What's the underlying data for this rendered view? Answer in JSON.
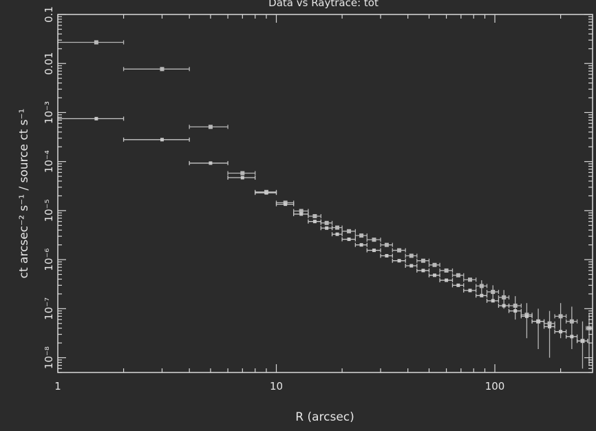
{
  "chart_data": {
    "type": "scatter",
    "title": "Data vs Raytrace: tot",
    "xlabel": "R (arcsec)",
    "ylabel": "ct arcsec⁻² s⁻¹ / source ct s⁻¹",
    "xscale": "log",
    "yscale": "log",
    "xlim": [
      1,
      280
    ],
    "ylim": [
      5e-09,
      0.1
    ],
    "grid": false,
    "legend": "none",
    "x_ticks": [
      {
        "value": 1,
        "label": "1"
      },
      {
        "value": 10,
        "label": "10"
      },
      {
        "value": 100,
        "label": "100"
      }
    ],
    "y_ticks": [
      {
        "value": 0.1,
        "label": "0.1"
      },
      {
        "value": 0.01,
        "label": "0.01"
      },
      {
        "value": 0.001,
        "label": "10⁻³"
      },
      {
        "value": 0.0001,
        "label": "10⁻⁴"
      },
      {
        "value": 1e-05,
        "label": "10⁻⁵"
      },
      {
        "value": 1e-06,
        "label": "10⁻⁶"
      },
      {
        "value": 1e-07,
        "label": "10⁻⁷"
      },
      {
        "value": 1e-08,
        "label": "10⁻⁸"
      }
    ],
    "series": [
      {
        "color": "#b8b8b8",
        "points": [
          {
            "x": 1.5,
            "y": 0.027,
            "xerr": [
              1,
              2
            ]
          },
          {
            "x": 3.0,
            "y": 0.0077,
            "xerr": [
              2,
              4
            ]
          },
          {
            "x": 5.0,
            "y": 0.00051,
            "xerr": [
              4,
              6
            ]
          },
          {
            "x": 7.0,
            "y": 5.8e-05,
            "xerr": [
              6,
              8
            ]
          },
          {
            "x": 9.0,
            "y": 2.4e-05,
            "xerr": [
              8,
              10
            ]
          },
          {
            "x": 11.0,
            "y": 1.45e-05,
            "xerr": [
              10,
              12
            ]
          },
          {
            "x": 13.0,
            "y": 9.8e-06,
            "xerr": [
              12,
              14
            ]
          },
          {
            "x": 15.0,
            "y": 7.7e-06,
            "xerr": [
              14,
              16
            ]
          },
          {
            "x": 17.0,
            "y": 5.6e-06,
            "xerr": [
              16,
              18
            ]
          },
          {
            "x": 19.0,
            "y": 4.5e-06,
            "xerr": [
              18,
              20
            ]
          },
          {
            "x": 21.5,
            "y": 3.8e-06,
            "xerr": [
              20,
              23
            ]
          },
          {
            "x": 24.5,
            "y": 3.1e-06,
            "xerr": [
              23,
              26
            ]
          },
          {
            "x": 28.0,
            "y": 2.55e-06,
            "xerr": [
              26,
              30
            ]
          },
          {
            "x": 32.0,
            "y": 2e-06,
            "xerr": [
              30,
              34
            ]
          },
          {
            "x": 36.5,
            "y": 1.55e-06,
            "xerr": [
              34,
              39
            ]
          },
          {
            "x": 41.5,
            "y": 1.2e-06,
            "xerr": [
              39,
              44
            ]
          },
          {
            "x": 47.0,
            "y": 9.5e-07,
            "xerr": [
              44,
              50
            ]
          },
          {
            "x": 53.0,
            "y": 7.8e-07,
            "xerr": [
              50,
              56
            ]
          },
          {
            "x": 60.0,
            "y": 6e-07,
            "xerr": [
              56,
              64
            ]
          },
          {
            "x": 68.0,
            "y": 4.8e-07,
            "xerr": [
              64,
              72
            ]
          },
          {
            "x": 77.0,
            "y": 3.9e-07,
            "xerr": [
              72,
              82
            ]
          },
          {
            "x": 87.0,
            "y": 2.9e-07,
            "xerr": [
              82,
              92
            ],
            "yerr": [
              2e-07,
              3.8e-07
            ]
          },
          {
            "x": 98.0,
            "y": 2.2e-07,
            "xerr": [
              92,
              104
            ],
            "yerr": [
              1.4e-07,
              3e-07
            ]
          },
          {
            "x": 110.0,
            "y": 1.7e-07,
            "xerr": [
              104,
              116
            ],
            "yerr": [
              1e-07,
              2.4e-07
            ]
          },
          {
            "x": 124.0,
            "y": 1.15e-07,
            "xerr": [
              116,
              132
            ],
            "yerr": [
              6e-08,
              1.8e-07
            ]
          },
          {
            "x": 140.0,
            "y": 7.5e-08,
            "xerr": [
              132,
              148
            ],
            "yerr": [
              2.5e-08,
              1.3e-07
            ]
          },
          {
            "x": 158.0,
            "y": 5.5e-08,
            "xerr": [
              148,
              168
            ],
            "yerr": [
              1.5e-08,
              1e-07
            ]
          },
          {
            "x": 178.0,
            "y": 5e-08,
            "xerr": [
              168,
              188
            ],
            "yerr": [
              1e-08,
              9e-08
            ]
          },
          {
            "x": 200.0,
            "y": 7e-08,
            "xerr": [
              188,
              212
            ],
            "yerr": [
              2.5e-08,
              1.3e-07
            ]
          },
          {
            "x": 225.0,
            "y": 5.5e-08,
            "xerr": [
              212,
              238
            ],
            "yerr": [
              1.5e-08,
              1.1e-07
            ]
          },
          {
            "x": 252.0,
            "y": 2.2e-08,
            "xerr": [
              238,
              266
            ],
            "yerr": [
              6e-09,
              5.5e-08
            ]
          },
          {
            "x": 270.0,
            "y": 4e-08,
            "xerr": [
              262,
              278
            ],
            "yerr": [
              7e-09,
              8e-08
            ]
          }
        ]
      },
      {
        "color": "#c8c8c8",
        "points": [
          {
            "x": 1.5,
            "y": 0.00075,
            "xerr": [
              1,
              2
            ]
          },
          {
            "x": 3.0,
            "y": 0.00028,
            "xerr": [
              2,
              4
            ]
          },
          {
            "x": 5.0,
            "y": 9.3e-05,
            "xerr": [
              4,
              6
            ]
          },
          {
            "x": 7.0,
            "y": 4.7e-05,
            "xerr": [
              6,
              8
            ]
          },
          {
            "x": 9.0,
            "y": 2.3e-05,
            "xerr": [
              8,
              10
            ]
          },
          {
            "x": 11.0,
            "y": 1.35e-05,
            "xerr": [
              10,
              12
            ]
          },
          {
            "x": 13.0,
            "y": 8.5e-06,
            "xerr": [
              12,
              14
            ]
          },
          {
            "x": 15.0,
            "y": 6e-06,
            "xerr": [
              14,
              16
            ]
          },
          {
            "x": 17.0,
            "y": 4.4e-06,
            "xerr": [
              16,
              18
            ]
          },
          {
            "x": 19.0,
            "y": 3.3e-06,
            "xerr": [
              18,
              20
            ]
          },
          {
            "x": 21.5,
            "y": 2.6e-06,
            "xerr": [
              20,
              23
            ]
          },
          {
            "x": 24.5,
            "y": 2e-06,
            "xerr": [
              23,
              26
            ]
          },
          {
            "x": 28.0,
            "y": 1.55e-06,
            "xerr": [
              26,
              30
            ]
          },
          {
            "x": 32.0,
            "y": 1.2e-06,
            "xerr": [
              30,
              34
            ]
          },
          {
            "x": 36.5,
            "y": 9.5e-07,
            "xerr": [
              34,
              39
            ]
          },
          {
            "x": 41.5,
            "y": 7.5e-07,
            "xerr": [
              39,
              44
            ]
          },
          {
            "x": 47.0,
            "y": 6e-07,
            "xerr": [
              44,
              50
            ]
          },
          {
            "x": 53.0,
            "y": 4.8e-07,
            "xerr": [
              50,
              56
            ]
          },
          {
            "x": 60.0,
            "y": 3.8e-07,
            "xerr": [
              56,
              64
            ]
          },
          {
            "x": 68.0,
            "y": 3e-07,
            "xerr": [
              64,
              72
            ]
          },
          {
            "x": 77.0,
            "y": 2.35e-07,
            "xerr": [
              72,
              82
            ]
          },
          {
            "x": 87.0,
            "y": 1.85e-07,
            "xerr": [
              82,
              92
            ]
          },
          {
            "x": 98.0,
            "y": 1.45e-07,
            "xerr": [
              92,
              104
            ]
          },
          {
            "x": 110.0,
            "y": 1.15e-07,
            "xerr": [
              104,
              116
            ]
          },
          {
            "x": 124.0,
            "y": 9e-08,
            "xerr": [
              116,
              132
            ]
          },
          {
            "x": 140.0,
            "y": 7e-08,
            "xerr": [
              132,
              148
            ]
          },
          {
            "x": 158.0,
            "y": 5.5e-08,
            "xerr": [
              148,
              168
            ]
          },
          {
            "x": 178.0,
            "y": 4.3e-08,
            "xerr": [
              168,
              188
            ]
          },
          {
            "x": 200.0,
            "y": 3.4e-08,
            "xerr": [
              188,
              212
            ]
          },
          {
            "x": 225.0,
            "y": 2.7e-08,
            "xerr": [
              212,
              238
            ]
          },
          {
            "x": 252.0,
            "y": 2.2e-08,
            "xerr": [
              238,
              266
            ]
          }
        ]
      }
    ]
  }
}
